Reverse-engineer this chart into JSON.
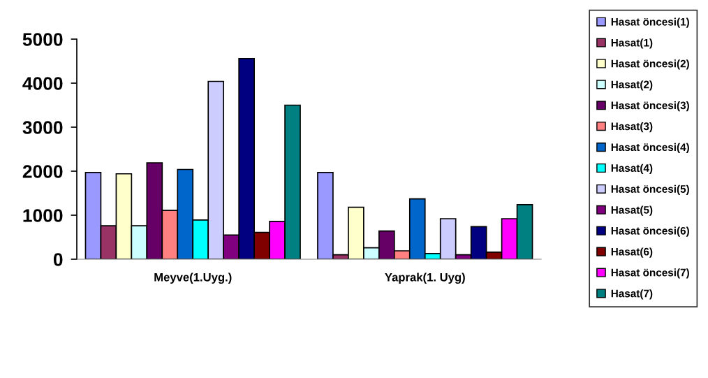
{
  "chart_data": {
    "type": "bar",
    "categories": [
      "Meyve(1.Uyg.)",
      "Yaprak(1. Uyg)"
    ],
    "series": [
      {
        "name": "Hasat öncesi(1)",
        "color": "#9999ff",
        "values": [
          1970,
          1970
        ]
      },
      {
        "name": "Hasat(1)",
        "color": "#993366",
        "values": [
          760,
          100
        ]
      },
      {
        "name": "Hasat öncesi(2)",
        "color": "#ffffcc",
        "values": [
          1940,
          1180
        ]
      },
      {
        "name": "Hasat(2)",
        "color": "#ccffff",
        "values": [
          760,
          260
        ]
      },
      {
        "name": "Hasat öncesi(3)",
        "color": "#660066",
        "values": [
          2190,
          640
        ]
      },
      {
        "name": "Hasat(3)",
        "color": "#ff8080",
        "values": [
          1110,
          190
        ]
      },
      {
        "name": "Hasat öncesi(4)",
        "color": "#0066cc",
        "values": [
          2040,
          1370
        ]
      },
      {
        "name": "Hasat(4)",
        "color": "#00ffff",
        "values": [
          890,
          130
        ]
      },
      {
        "name": "Hasat öncesi(5)",
        "color": "#ccccff",
        "values": [
          4040,
          920
        ]
      },
      {
        "name": "Hasat(5)",
        "color": "#800080",
        "values": [
          550,
          100
        ]
      },
      {
        "name": "Hasat öncesi(6)",
        "color": "#000080",
        "values": [
          4560,
          740
        ]
      },
      {
        "name": "Hasat(6)",
        "color": "#800000",
        "values": [
          610,
          160
        ]
      },
      {
        "name": "Hasat öncesi(7)",
        "color": "#ff00ff",
        "values": [
          860,
          920
        ]
      },
      {
        "name": "Hasat(7)",
        "color": "#008080",
        "values": [
          3500,
          1240
        ]
      }
    ],
    "ylim": [
      0,
      5000
    ],
    "yticks": [
      0,
      1000,
      2000,
      3000,
      4000,
      5000
    ],
    "grid": false,
    "legend": "right"
  }
}
